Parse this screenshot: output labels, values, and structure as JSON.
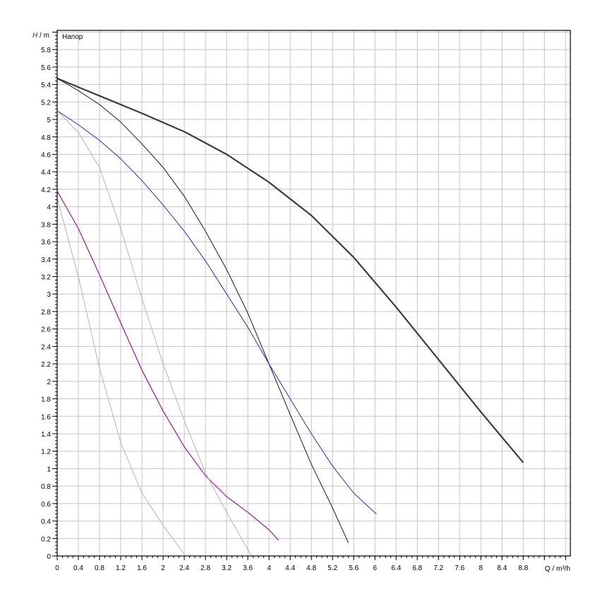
{
  "chart_data": {
    "type": "line",
    "title": "Напор",
    "ylabel_italic": "H",
    "ylabel_unit": " / m",
    "xlabel": "Q / m³/h",
    "xlim": [
      0,
      9.69
    ],
    "ylim": [
      0,
      6.02
    ],
    "grid": true,
    "x_ticks": [
      0,
      0.4,
      0.8,
      1.2,
      1.6,
      2,
      2.4,
      2.8,
      3.2,
      3.6,
      4,
      4.4,
      4.8,
      5.2,
      5.6,
      6,
      6.4,
      6.8,
      7.2,
      7.6,
      8,
      8.4,
      8.8
    ],
    "y_ticks": [
      0,
      0.2,
      0.4,
      0.6,
      0.8,
      1,
      1.2,
      1.4,
      1.6,
      1.8,
      2,
      2.2,
      2.4,
      2.6,
      2.8,
      3,
      3.2,
      3.4,
      3.6,
      3.8,
      4,
      4.2,
      4.4,
      4.6,
      4.8,
      5,
      5.2,
      5.4,
      5.6,
      5.8
    ],
    "series": [
      {
        "color": "#3a3d44",
        "width": 2.2,
        "points": [
          [
            0,
            5.47
          ],
          [
            0.8,
            5.27
          ],
          [
            1.6,
            5.07
          ],
          [
            2.4,
            4.86
          ],
          [
            3.2,
            4.6
          ],
          [
            4,
            4.28
          ],
          [
            4.8,
            3.9
          ],
          [
            5.6,
            3.42
          ],
          [
            6.4,
            2.85
          ],
          [
            7.2,
            2.25
          ],
          [
            8,
            1.65
          ],
          [
            8.8,
            1.07
          ]
        ]
      },
      {
        "color": "#1a1a1a",
        "width": 1,
        "points": [
          [
            0,
            5.47
          ],
          [
            0.4,
            5.33
          ],
          [
            0.8,
            5.17
          ],
          [
            1.2,
            4.97
          ],
          [
            1.6,
            4.72
          ],
          [
            2,
            4.45
          ],
          [
            2.4,
            4.12
          ],
          [
            2.8,
            3.72
          ],
          [
            3.2,
            3.28
          ],
          [
            3.6,
            2.78
          ],
          [
            4,
            2.2
          ],
          [
            4.4,
            1.62
          ],
          [
            4.8,
            1.05
          ],
          [
            5.2,
            0.55
          ],
          [
            5.5,
            0.15
          ]
        ]
      },
      {
        "color": "#2a2ad0",
        "width": 1,
        "points": [
          [
            0,
            5.1
          ],
          [
            0.4,
            4.94
          ],
          [
            0.8,
            4.76
          ],
          [
            1.2,
            4.55
          ],
          [
            1.6,
            4.3
          ],
          [
            2,
            4.02
          ],
          [
            2.4,
            3.72
          ],
          [
            2.8,
            3.38
          ],
          [
            3.2,
            3.0
          ],
          [
            3.6,
            2.62
          ],
          [
            4,
            2.2
          ],
          [
            4.4,
            1.8
          ],
          [
            4.8,
            1.4
          ],
          [
            5.2,
            1.03
          ],
          [
            5.6,
            0.72
          ],
          [
            6.03,
            0.48
          ]
        ]
      },
      {
        "color": "#a0178f",
        "width": 1.2,
        "points": [
          [
            0,
            4.18
          ],
          [
            0.4,
            3.75
          ],
          [
            0.8,
            3.22
          ],
          [
            1.2,
            2.67
          ],
          [
            1.6,
            2.13
          ],
          [
            2,
            1.66
          ],
          [
            2.4,
            1.25
          ],
          [
            2.8,
            0.92
          ],
          [
            3.2,
            0.68
          ],
          [
            3.6,
            0.5
          ],
          [
            4,
            0.3
          ],
          [
            4.18,
            0.18
          ]
        ]
      },
      {
        "color": "#b4b4b4",
        "width": 1,
        "points": [
          [
            0,
            5.1
          ],
          [
            0.4,
            4.85
          ],
          [
            0.8,
            4.45
          ],
          [
            1.2,
            3.75
          ],
          [
            1.6,
            2.95
          ],
          [
            2,
            2.2
          ],
          [
            2.4,
            1.55
          ],
          [
            2.8,
            0.95
          ],
          [
            3.2,
            0.5
          ],
          [
            3.67,
            0.0
          ]
        ]
      },
      {
        "color": "#b4b4b4",
        "width": 1,
        "points": [
          [
            0,
            4.1
          ],
          [
            0.4,
            3.2
          ],
          [
            0.8,
            2.15
          ],
          [
            1.2,
            1.3
          ],
          [
            1.6,
            0.72
          ],
          [
            2,
            0.35
          ],
          [
            2.4,
            0.02
          ]
        ]
      }
    ]
  }
}
